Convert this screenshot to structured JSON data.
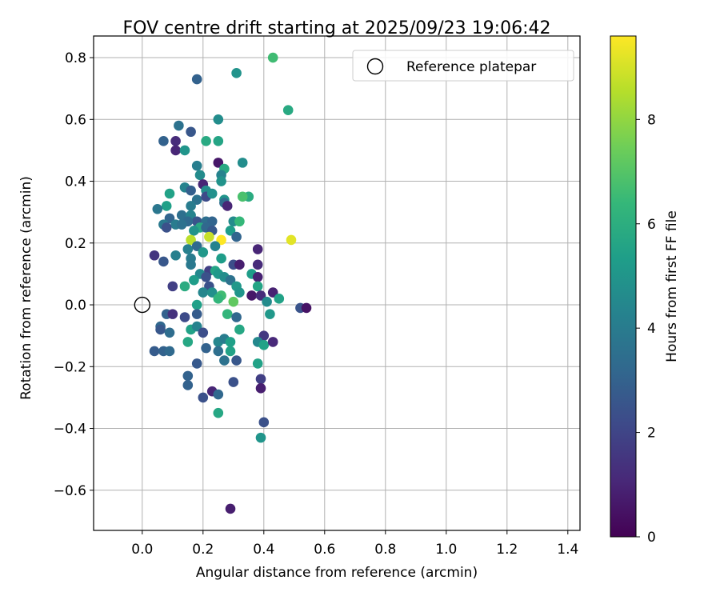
{
  "chart_data": {
    "type": "scatter",
    "title": "FOV centre drift starting at 2025/09/23 19:06:42",
    "xlabel": "Angular distance from reference (arcmin)",
    "ylabel": "Rotation from reference (arcmin)",
    "xlim": [
      -0.16,
      1.44
    ],
    "ylim": [
      -0.73,
      0.87
    ],
    "xticks": [
      "0.0",
      "0.2",
      "0.4",
      "0.6",
      "0.8",
      "1.0",
      "1.2",
      "1.4"
    ],
    "xtick_values": [
      0.0,
      0.2,
      0.4,
      0.6,
      0.8,
      1.0,
      1.2,
      1.4
    ],
    "yticks": [
      "−0.6",
      "−0.4",
      "−0.2",
      "0.0",
      "0.2",
      "0.4",
      "0.6",
      "0.8"
    ],
    "ytick_values": [
      -0.6,
      -0.4,
      -0.2,
      0.0,
      0.2,
      0.4,
      0.6,
      0.8
    ],
    "grid": true,
    "legend": {
      "position": "top-right",
      "entries": [
        "Reference platepar"
      ]
    },
    "reference_point": {
      "x": 0.0,
      "y": 0.0,
      "label": "Reference platepar"
    },
    "colorbar": {
      "label": "Hours from first FF file",
      "range": [
        0,
        9.6
      ],
      "ticks": [
        "0",
        "2",
        "4",
        "6",
        "8"
      ],
      "tick_values": [
        0,
        2,
        4,
        6,
        8
      ],
      "colormap": "viridis",
      "stops": [
        "#440154",
        "#482878",
        "#3e4989",
        "#31688e",
        "#26828e",
        "#1f9e89",
        "#35b779",
        "#6ece58",
        "#b5de2b",
        "#fde725"
      ]
    },
    "points": [
      [
        0.43,
        0.8,
        6.6
      ],
      [
        0.31,
        0.75,
        4.9
      ],
      [
        0.18,
        0.73,
        3.0
      ],
      [
        0.48,
        0.63,
        5.8
      ],
      [
        0.25,
        0.6,
        4.7
      ],
      [
        0.12,
        0.58,
        3.6
      ],
      [
        0.16,
        0.56,
        2.6
      ],
      [
        0.07,
        0.53,
        3.0
      ],
      [
        0.11,
        0.53,
        1.2
      ],
      [
        0.21,
        0.53,
        5.8
      ],
      [
        0.25,
        0.53,
        5.6
      ],
      [
        0.11,
        0.5,
        1.0
      ],
      [
        0.14,
        0.5,
        5.0
      ],
      [
        0.25,
        0.46,
        0.6
      ],
      [
        0.33,
        0.46,
        4.7
      ],
      [
        0.18,
        0.45,
        4.1
      ],
      [
        0.27,
        0.44,
        5.8
      ],
      [
        0.19,
        0.42,
        4.6
      ],
      [
        0.26,
        0.42,
        4.3
      ],
      [
        0.2,
        0.39,
        1.0
      ],
      [
        0.26,
        0.4,
        4.9
      ],
      [
        0.14,
        0.38,
        4.3
      ],
      [
        0.16,
        0.37,
        2.9
      ],
      [
        0.21,
        0.37,
        4.7
      ],
      [
        0.35,
        0.35,
        5.9
      ],
      [
        0.09,
        0.36,
        5.5
      ],
      [
        0.18,
        0.34,
        3.6
      ],
      [
        0.21,
        0.35,
        2.2
      ],
      [
        0.23,
        0.36,
        4.8
      ],
      [
        0.27,
        0.34,
        5.0
      ],
      [
        0.33,
        0.35,
        6.8
      ],
      [
        0.27,
        0.33,
        3.4
      ],
      [
        0.08,
        0.32,
        5.4
      ],
      [
        0.16,
        0.32,
        4.0
      ],
      [
        0.28,
        0.32,
        1.0
      ],
      [
        0.05,
        0.31,
        3.8
      ],
      [
        0.13,
        0.29,
        3.5
      ],
      [
        0.16,
        0.29,
        4.3
      ],
      [
        0.09,
        0.28,
        3.1
      ],
      [
        0.18,
        0.27,
        2.5
      ],
      [
        0.15,
        0.27,
        3.3
      ],
      [
        0.21,
        0.27,
        3.5
      ],
      [
        0.23,
        0.27,
        3.1
      ],
      [
        0.3,
        0.27,
        4.6
      ],
      [
        0.32,
        0.27,
        6.4
      ],
      [
        0.07,
        0.26,
        3.9
      ],
      [
        0.11,
        0.26,
        4.0
      ],
      [
        0.13,
        0.26,
        3.6
      ],
      [
        0.19,
        0.25,
        5.8
      ],
      [
        0.17,
        0.24,
        4.9
      ],
      [
        0.08,
        0.25,
        2.4
      ],
      [
        0.21,
        0.25,
        3.2
      ],
      [
        0.23,
        0.24,
        2.7
      ],
      [
        0.29,
        0.24,
        5.3
      ],
      [
        0.31,
        0.22,
        3.1
      ],
      [
        0.16,
        0.21,
        8.6
      ],
      [
        0.22,
        0.22,
        8.8
      ],
      [
        0.26,
        0.21,
        9.6
      ],
      [
        0.49,
        0.21,
        9.2
      ],
      [
        0.15,
        0.18,
        4.2
      ],
      [
        0.18,
        0.19,
        3.3
      ],
      [
        0.2,
        0.17,
        5.1
      ],
      [
        0.24,
        0.19,
        4.3
      ],
      [
        0.38,
        0.18,
        1.0
      ],
      [
        0.04,
        0.16,
        1.5
      ],
      [
        0.11,
        0.16,
        4.2
      ],
      [
        0.16,
        0.15,
        4.0
      ],
      [
        0.26,
        0.15,
        5.3
      ],
      [
        0.07,
        0.14,
        2.6
      ],
      [
        0.16,
        0.13,
        3.9
      ],
      [
        0.3,
        0.13,
        2.3
      ],
      [
        0.32,
        0.13,
        0.8
      ],
      [
        0.38,
        0.13,
        1.2
      ],
      [
        0.22,
        0.11,
        1.8
      ],
      [
        0.24,
        0.11,
        5.6
      ],
      [
        0.19,
        0.1,
        4.5
      ],
      [
        0.25,
        0.1,
        5.1
      ],
      [
        0.27,
        0.09,
        4.7
      ],
      [
        0.36,
        0.1,
        5.3
      ],
      [
        0.17,
        0.08,
        5.3
      ],
      [
        0.21,
        0.09,
        2.4
      ],
      [
        0.29,
        0.08,
        3.6
      ],
      [
        0.38,
        0.09,
        0.9
      ],
      [
        0.1,
        0.06,
        1.8
      ],
      [
        0.14,
        0.06,
        5.9
      ],
      [
        0.22,
        0.06,
        2.4
      ],
      [
        0.31,
        0.06,
        5.1
      ],
      [
        0.38,
        0.06,
        5.6
      ],
      [
        0.2,
        0.04,
        4.4
      ],
      [
        0.23,
        0.04,
        4.8
      ],
      [
        0.26,
        0.03,
        6.6
      ],
      [
        0.32,
        0.04,
        5.0
      ],
      [
        0.36,
        0.03,
        0.6
      ],
      [
        0.39,
        0.03,
        1.2
      ],
      [
        0.43,
        0.04,
        0.9
      ],
      [
        0.18,
        0.0,
        5.4
      ],
      [
        0.25,
        0.02,
        6.3
      ],
      [
        0.3,
        0.01,
        7.2
      ],
      [
        0.41,
        0.01,
        4.6
      ],
      [
        0.45,
        0.02,
        5.5
      ],
      [
        0.52,
        -0.01,
        2.5
      ],
      [
        0.54,
        -0.01,
        0.5
      ],
      [
        0.42,
        -0.03,
        5.1
      ],
      [
        0.08,
        -0.03,
        3.0
      ],
      [
        0.1,
        -0.03,
        1.4
      ],
      [
        0.14,
        -0.04,
        2.2
      ],
      [
        0.18,
        -0.03,
        2.8
      ],
      [
        0.28,
        -0.03,
        6.3
      ],
      [
        0.31,
        -0.04,
        3.2
      ],
      [
        0.4,
        -0.1,
        1.6
      ],
      [
        0.06,
        -0.07,
        3.2
      ],
      [
        0.06,
        -0.08,
        2.6
      ],
      [
        0.09,
        -0.09,
        3.4
      ],
      [
        0.16,
        -0.08,
        5.5
      ],
      [
        0.18,
        -0.07,
        4.3
      ],
      [
        0.2,
        -0.09,
        2.3
      ],
      [
        0.32,
        -0.08,
        5.7
      ],
      [
        0.15,
        -0.12,
        5.7
      ],
      [
        0.25,
        -0.12,
        4.4
      ],
      [
        0.27,
        -0.11,
        4.0
      ],
      [
        0.29,
        -0.12,
        5.4
      ],
      [
        0.38,
        -0.12,
        4.5
      ],
      [
        0.4,
        -0.13,
        5.5
      ],
      [
        0.43,
        -0.12,
        1.1
      ],
      [
        0.04,
        -0.15,
        2.8
      ],
      [
        0.07,
        -0.15,
        3.0
      ],
      [
        0.09,
        -0.15,
        3.3
      ],
      [
        0.21,
        -0.14,
        3.0
      ],
      [
        0.25,
        -0.15,
        3.5
      ],
      [
        0.29,
        -0.15,
        5.5
      ],
      [
        0.27,
        -0.18,
        3.6
      ],
      [
        0.31,
        -0.18,
        2.6
      ],
      [
        0.38,
        -0.19,
        5.5
      ],
      [
        0.18,
        -0.19,
        2.7
      ],
      [
        0.15,
        -0.23,
        3.0
      ],
      [
        0.39,
        -0.24,
        1.8
      ],
      [
        0.15,
        -0.26,
        3.0
      ],
      [
        0.3,
        -0.25,
        2.4
      ],
      [
        0.39,
        -0.27,
        0.8
      ],
      [
        0.23,
        -0.28,
        1.0
      ],
      [
        0.25,
        -0.29,
        3.2
      ],
      [
        0.2,
        -0.3,
        2.4
      ],
      [
        0.25,
        -0.35,
        5.7
      ],
      [
        0.4,
        -0.38,
        2.4
      ],
      [
        0.39,
        -0.43,
        5.0
      ],
      [
        0.29,
        -0.66,
        0.8
      ]
    ]
  }
}
